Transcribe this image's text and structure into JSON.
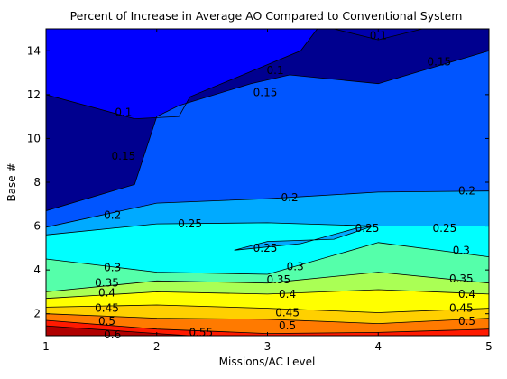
{
  "chart_data": {
    "type": "contour",
    "title": "Percent of Increase in Average AO Compared to Conventional System",
    "xlabel": "Missions/AC Level",
    "ylabel": "Base #",
    "xlim": [
      1,
      5
    ],
    "ylim": [
      1,
      15
    ],
    "x_ticks": [
      "1",
      "2",
      "3",
      "4",
      "5"
    ],
    "y_ticks": [
      "2",
      "4",
      "6",
      "8",
      "10",
      "12",
      "14"
    ],
    "grid": false,
    "colormap": "jet",
    "levels": [
      0.05,
      0.1,
      0.15,
      0.2,
      0.25,
      0.3,
      0.35,
      0.4,
      0.45,
      0.5,
      0.55,
      0.6
    ],
    "boundaries": [
      {
        "level": 0.6,
        "color": "#b00000",
        "points": [
          [
            1,
            1.45
          ],
          [
            2,
            1.1
          ],
          [
            2.3,
            1.0
          ]
        ]
      },
      {
        "level": 0.55,
        "color": "#ff1a00",
        "points": [
          [
            1,
            1.7
          ],
          [
            2,
            1.3
          ],
          [
            3,
            1.1
          ],
          [
            4,
            1.15
          ],
          [
            5,
            1.3
          ]
        ]
      },
      {
        "level": 0.5,
        "color": "#ff7a00",
        "points": [
          [
            1,
            2.0
          ],
          [
            2,
            1.8
          ],
          [
            3,
            1.75
          ],
          [
            4,
            1.55
          ],
          [
            5,
            1.8
          ]
        ]
      },
      {
        "level": 0.45,
        "color": "#ffd000",
        "points": [
          [
            1,
            2.3
          ],
          [
            2,
            2.4
          ],
          [
            3,
            2.25
          ],
          [
            4,
            2.05
          ],
          [
            5,
            2.25
          ]
        ]
      },
      {
        "level": 0.4,
        "color": "#ffff00",
        "points": [
          [
            1,
            2.7
          ],
          [
            2,
            3.0
          ],
          [
            3,
            2.9
          ],
          [
            4,
            3.1
          ],
          [
            5,
            2.9
          ]
        ]
      },
      {
        "level": 0.35,
        "color": "#aaff55",
        "points": [
          [
            1,
            3.0
          ],
          [
            2,
            3.5
          ],
          [
            3,
            3.4
          ],
          [
            4,
            3.9
          ],
          [
            5,
            3.4
          ]
        ]
      },
      {
        "level": 0.3,
        "color": "#55ffaa",
        "points": [
          [
            1,
            4.5
          ],
          [
            2,
            3.9
          ],
          [
            3,
            3.8
          ],
          [
            4,
            5.25
          ],
          [
            5,
            4.6
          ]
        ]
      },
      {
        "level": 0.25,
        "color": "#00ffff",
        "points": [
          [
            1,
            5.6
          ],
          [
            2,
            6.1
          ],
          [
            3,
            6.15
          ],
          [
            4,
            6.0
          ],
          [
            5,
            6.0
          ]
        ]
      },
      {
        "level": 0.2,
        "color": "#00aaff",
        "points": [
          [
            1,
            5.95
          ],
          [
            2,
            7.05
          ],
          [
            3,
            7.25
          ],
          [
            4,
            7.55
          ],
          [
            5,
            7.6
          ]
        ]
      },
      {
        "level": 0.15,
        "color": "#0055ff",
        "points": [
          [
            1,
            6.7
          ],
          [
            1.8,
            7.9
          ],
          [
            2,
            11.0
          ],
          [
            2.2,
            11.5
          ],
          [
            2.85,
            12.5
          ],
          [
            3.2,
            12.9
          ],
          [
            4,
            12.5
          ],
          [
            5,
            14.0
          ]
        ]
      },
      {
        "level": 0.1,
        "color": "#0000ff",
        "points": [
          [
            1,
            12.0
          ],
          [
            1.8,
            10.9
          ],
          [
            2.2,
            11.0
          ],
          [
            2.3,
            11.9
          ],
          [
            3.3,
            14.0
          ],
          [
            3.45,
            15.0
          ]
        ]
      },
      {
        "level": 0.05,
        "color": "#0000ad",
        "points": [
          [
            3.6,
            15.0
          ],
          [
            4,
            14.5
          ],
          [
            4.4,
            15.0
          ]
        ]
      }
    ],
    "island": {
      "level": 0.25,
      "points": [
        [
          2.7,
          4.9
        ],
        [
          3.3,
          5.2
        ],
        [
          3.8,
          5.9
        ],
        [
          3.95,
          6.0
        ],
        [
          3.6,
          5.4
        ],
        [
          3.0,
          5.3
        ]
      ]
    },
    "contour_labels": [
      {
        "text": "0.6",
        "x": 1.6,
        "y": 1.05
      },
      {
        "text": "0.55",
        "x": 2.4,
        "y": 1.15
      },
      {
        "text": "0.5",
        "x": 1.55,
        "y": 1.65
      },
      {
        "text": "0.5",
        "x": 3.18,
        "y": 1.45
      },
      {
        "text": "0.5",
        "x": 4.8,
        "y": 1.65
      },
      {
        "text": "0.45",
        "x": 1.55,
        "y": 2.25
      },
      {
        "text": "0.45",
        "x": 3.18,
        "y": 2.05
      },
      {
        "text": "0.45",
        "x": 4.75,
        "y": 2.25
      },
      {
        "text": "0.4",
        "x": 1.55,
        "y": 2.95
      },
      {
        "text": "0.4",
        "x": 3.18,
        "y": 2.9
      },
      {
        "text": "0.4",
        "x": 4.8,
        "y": 2.9
      },
      {
        "text": "0.35",
        "x": 1.55,
        "y": 3.4
      },
      {
        "text": "0.35",
        "x": 3.1,
        "y": 3.55
      },
      {
        "text": "0.35",
        "x": 4.75,
        "y": 3.6
      },
      {
        "text": "0.3",
        "x": 1.6,
        "y": 4.1
      },
      {
        "text": "0.3",
        "x": 3.25,
        "y": 4.15
      },
      {
        "text": "0.3",
        "x": 4.75,
        "y": 4.9
      },
      {
        "text": "0.25",
        "x": 2.3,
        "y": 6.1
      },
      {
        "text": "0.25",
        "x": 2.98,
        "y": 5.0
      },
      {
        "text": "0.25",
        "x": 3.9,
        "y": 5.9
      },
      {
        "text": "0.25",
        "x": 4.6,
        "y": 5.9
      },
      {
        "text": "0.2",
        "x": 1.6,
        "y": 6.5
      },
      {
        "text": "0.2",
        "x": 3.2,
        "y": 7.3
      },
      {
        "text": "0.2",
        "x": 4.8,
        "y": 7.6
      },
      {
        "text": "0.15",
        "x": 1.7,
        "y": 9.2
      },
      {
        "text": "0.15",
        "x": 2.98,
        "y": 12.1
      },
      {
        "text": "0.15",
        "x": 4.55,
        "y": 13.5
      },
      {
        "text": "0.1",
        "x": 1.7,
        "y": 11.2
      },
      {
        "text": "0.1",
        "x": 3.07,
        "y": 13.1
      },
      {
        "text": "0.1",
        "x": 4.0,
        "y": 14.7
      }
    ]
  }
}
